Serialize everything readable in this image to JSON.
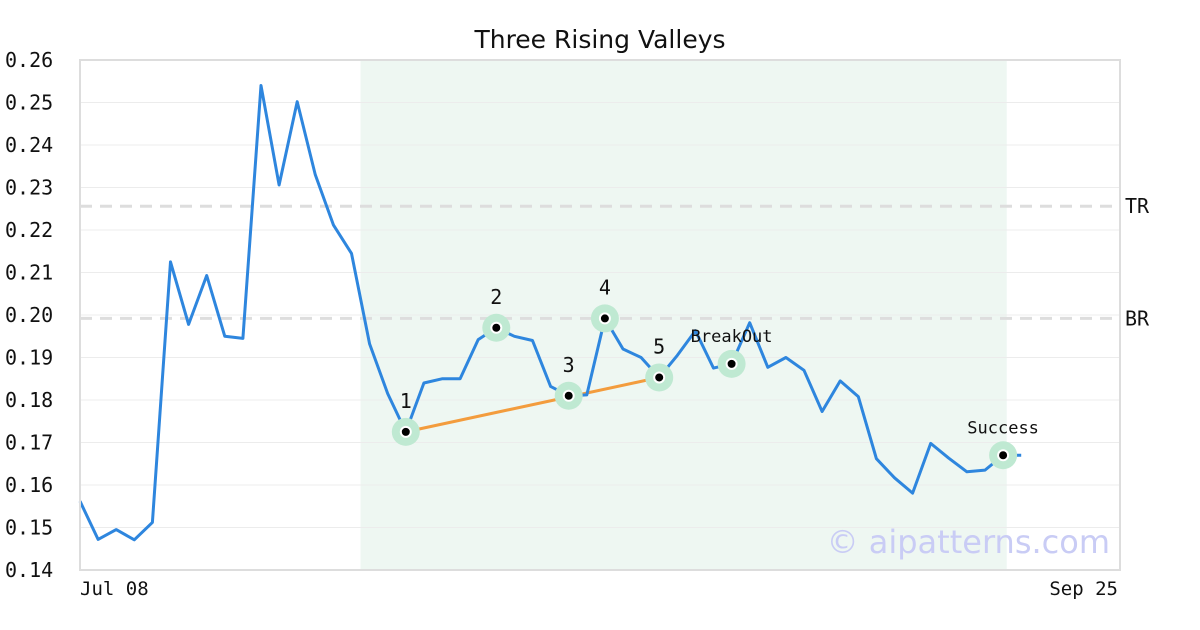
{
  "chart_data": {
    "type": "line",
    "title": "Three Rising Valleys",
    "x_tick_labels": {
      "start": "Jul 08",
      "end": "Sep 25"
    },
    "ylim": [
      0.14,
      0.26
    ],
    "y_ticks": [
      "0.26",
      "0.25",
      "0.24",
      "0.23",
      "0.22",
      "0.21",
      "0.20",
      "0.19",
      "0.18",
      "0.17",
      "0.16",
      "0.15",
      "0.14"
    ],
    "grid": true,
    "series": [
      {
        "values": [
          0.1562,
          0.1472,
          0.1495,
          0.1471,
          0.1512,
          0.2125,
          0.1978,
          0.2093,
          0.195,
          0.1945,
          0.254,
          0.2306,
          0.2502,
          0.233,
          0.2212,
          0.2145,
          0.1932,
          0.1815,
          0.1725,
          0.184,
          0.185,
          0.185,
          0.1942,
          0.197,
          0.195,
          0.194,
          0.1832,
          0.181,
          0.1812,
          0.1992,
          0.192,
          0.19,
          0.1853,
          0.1905,
          0.1963,
          0.1875,
          0.1885,
          0.1982,
          0.1877,
          0.19,
          0.187,
          0.1773,
          0.1845,
          0.1808,
          0.1662,
          0.1617,
          0.1581,
          0.1698,
          0.1663,
          0.1631,
          0.1635,
          0.167,
          0.167
        ]
      }
    ],
    "pattern_region": {
      "start_index": 16,
      "end_index": 51
    },
    "levels": [
      {
        "label": "TR",
        "value": 0.2256
      },
      {
        "label": "BR",
        "value": 0.1992
      }
    ],
    "trendline": {
      "from_index": 18,
      "to_index": 32
    },
    "points": [
      {
        "label": "1",
        "index": 18,
        "value": 0.1725
      },
      {
        "label": "2",
        "index": 23,
        "value": 0.197
      },
      {
        "label": "3",
        "index": 27,
        "value": 0.181
      },
      {
        "label": "4",
        "index": 29,
        "value": 0.1992
      },
      {
        "label": "5",
        "index": 32,
        "value": 0.1853
      },
      {
        "label": "BreakOut",
        "index": 36,
        "value": 0.1885
      },
      {
        "label": "Success",
        "index": 51,
        "value": 0.167
      }
    ],
    "watermark": "© aipatterns.com",
    "colors": {
      "line": "#2e86de",
      "trendline": "#f39c3d",
      "region": "#eef7f2",
      "marker_halo": "#bfe9d2",
      "level_line": "#dddddd",
      "grid": "#ececec",
      "frame": "#dddddd"
    }
  }
}
